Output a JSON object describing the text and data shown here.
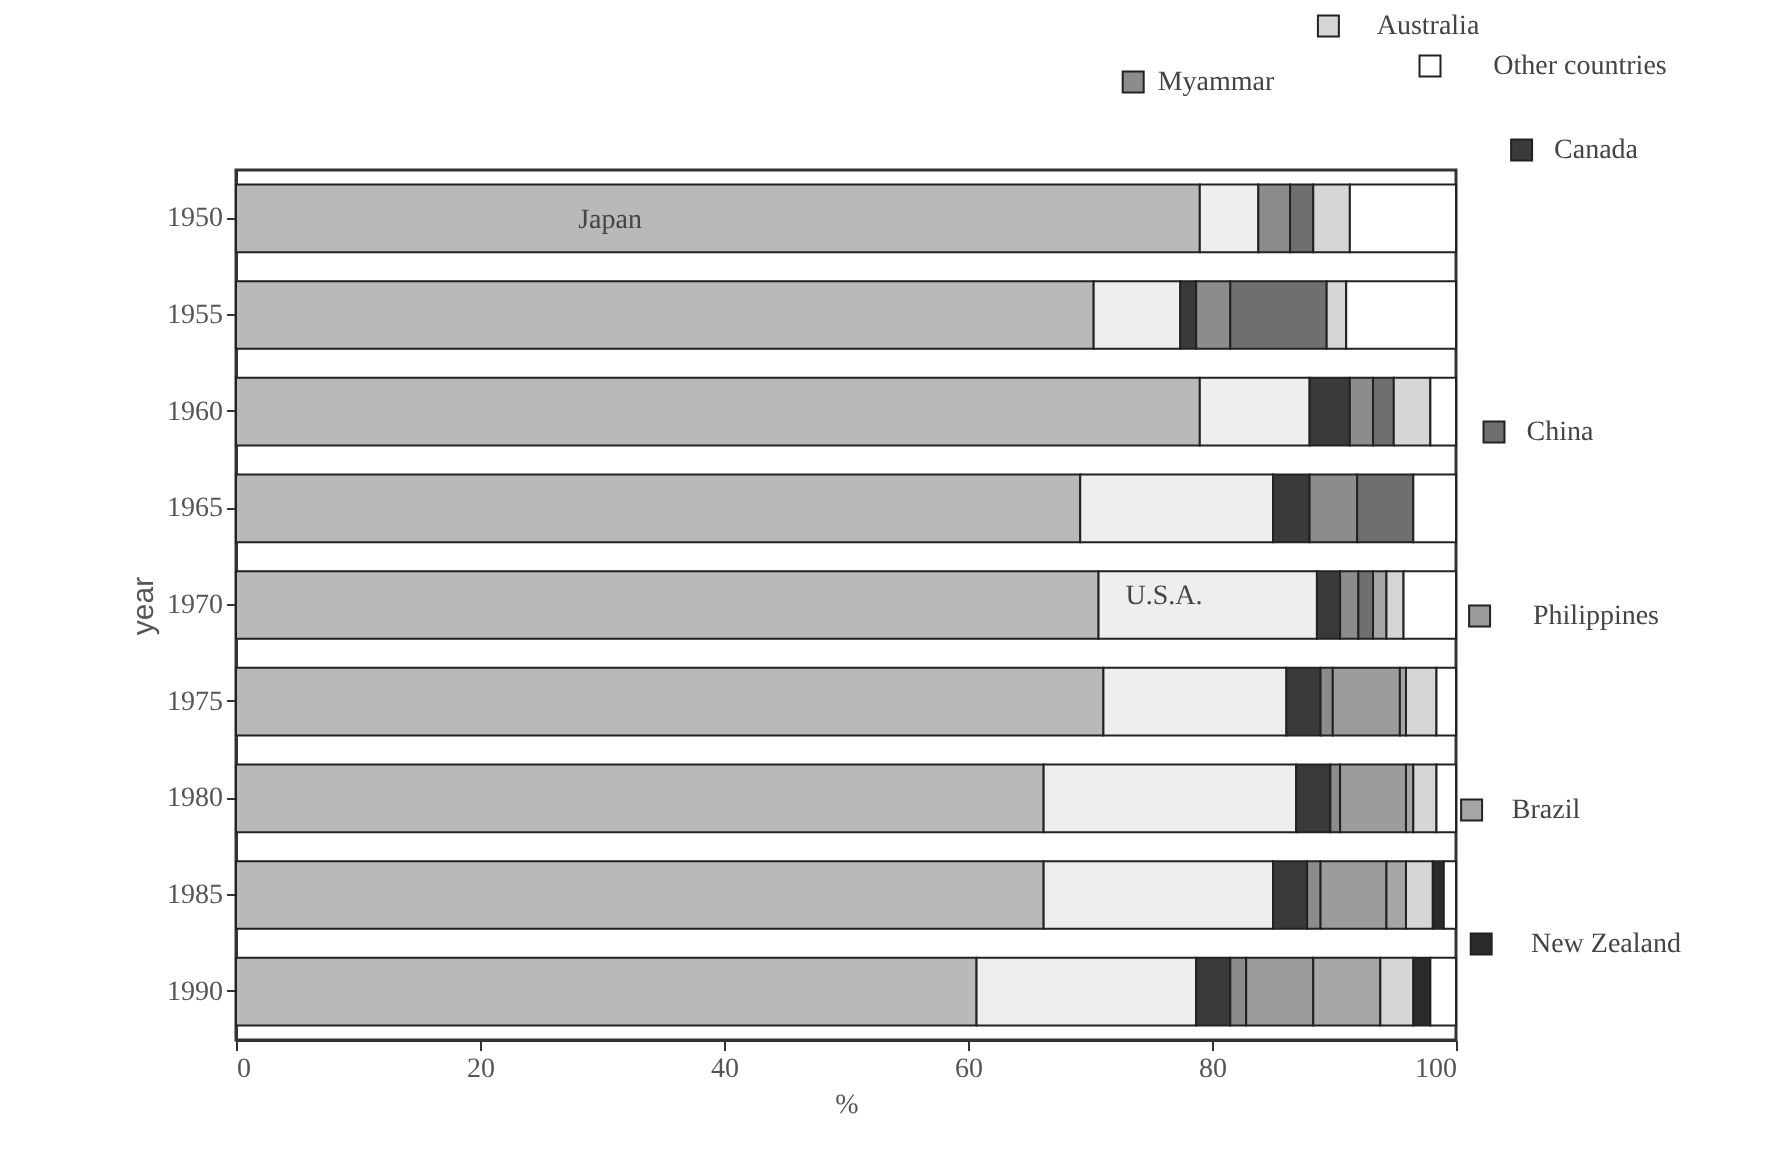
{
  "chart_data": {
    "type": "bar",
    "orientation": "horizontal",
    "stacked": true,
    "xlabel": "%",
    "ylabel": "year",
    "categories": [
      "1950",
      "1955",
      "1960",
      "1965",
      "1970",
      "1975",
      "1980",
      "1985",
      "1990"
    ],
    "xlim": [
      0,
      100
    ],
    "xticks": [
      0,
      20,
      40,
      60,
      80,
      100
    ],
    "grid": false,
    "legend": "right",
    "series": [
      {
        "name": "Japan",
        "color": "#b9b9b9",
        "values": [
          79.0,
          70.3,
          79.0,
          69.2,
          70.7,
          71.1,
          66.2,
          66.2,
          60.7
        ]
      },
      {
        "name": "U.S.A.",
        "color": "#eeeeee",
        "values": [
          4.8,
          7.1,
          9.0,
          15.8,
          17.9,
          15.0,
          20.7,
          18.8,
          18.0
        ]
      },
      {
        "name": "Canada",
        "color": "#3a3a3a",
        "values": [
          null,
          1.3,
          3.3,
          3.0,
          1.9,
          2.8,
          2.8,
          2.8,
          2.8
        ]
      },
      {
        "name": "Myammar",
        "color": "#8c8c8c",
        "values": [
          2.6,
          2.8,
          1.9,
          3.9,
          1.5,
          1.0,
          0.8,
          1.1,
          1.3
        ]
      },
      {
        "name": "China",
        "color": "#6f6f6f",
        "values": [
          1.9,
          7.9,
          1.7,
          4.6,
          1.2,
          null,
          null,
          null,
          null
        ]
      },
      {
        "name": "Philippines",
        "color": "#9c9c9c",
        "values": [
          null,
          null,
          null,
          null,
          null,
          5.5,
          5.4,
          5.4,
          5.5
        ]
      },
      {
        "name": "Brazil",
        "color": "#a6a6a6",
        "values": [
          null,
          null,
          null,
          null,
          1.1,
          0.5,
          0.6,
          1.6,
          5.5
        ]
      },
      {
        "name": "Australia",
        "color": "#d6d6d6",
        "values": [
          3.0,
          1.6,
          3.0,
          null,
          1.4,
          2.5,
          1.9,
          2.2,
          2.7
        ]
      },
      {
        "name": "New  Zealand",
        "color": "#2a2a2a",
        "values": [
          null,
          null,
          null,
          null,
          null,
          null,
          null,
          0.9,
          1.4
        ]
      },
      {
        "name": "Other countries",
        "color": "#ffffff",
        "values": [
          8.7,
          9.0,
          2.1,
          3.5,
          4.3,
          1.6,
          1.6,
          1.0,
          2.1
        ]
      }
    ]
  }
}
